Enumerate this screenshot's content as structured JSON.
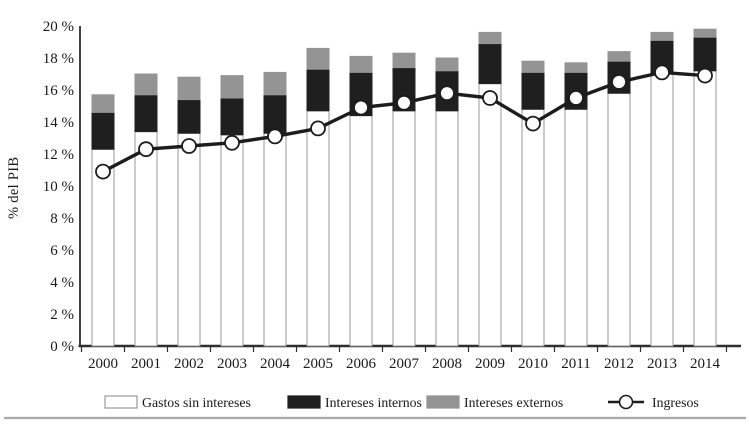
{
  "chart_data": {
    "type": "bar",
    "subtype": "stacked-bar-with-line-overlay",
    "title": "",
    "xlabel": "",
    "ylabel": "% del PIB",
    "categories": [
      "2000",
      "2001",
      "2002",
      "2003",
      "2004",
      "2005",
      "2006",
      "2007",
      "2008",
      "2009",
      "2010",
      "2011",
      "2012",
      "2013",
      "2014"
    ],
    "series": [
      {
        "name": "Gastos sin intereses",
        "type": "bar",
        "color": "#ffffff",
        "border": "#9a9a9a",
        "values": [
          12.3,
          13.4,
          13.3,
          13.2,
          13.3,
          14.7,
          14.4,
          14.7,
          14.7,
          16.4,
          14.8,
          14.8,
          15.8,
          17.0,
          17.2
        ]
      },
      {
        "name": "Intereses internos",
        "type": "bar",
        "color": "#1f1f1f",
        "border": "#1f1f1f",
        "values": [
          2.3,
          2.3,
          2.1,
          2.3,
          2.4,
          2.6,
          2.7,
          2.7,
          2.5,
          2.5,
          2.3,
          2.3,
          2.0,
          2.1,
          2.1
        ]
      },
      {
        "name": "Intereses externos",
        "type": "bar",
        "color": "#949494",
        "border": "#949494",
        "values": [
          1.1,
          1.3,
          1.4,
          1.4,
          1.4,
          1.3,
          1.0,
          0.9,
          0.8,
          0.7,
          0.7,
          0.6,
          0.6,
          0.5,
          0.5
        ]
      },
      {
        "name": "Ingresos",
        "type": "line",
        "color": "#1c1c1c",
        "marker": "open-circle",
        "marker_fill": "#ffffff",
        "values": [
          10.9,
          12.3,
          12.5,
          12.7,
          13.1,
          13.6,
          14.9,
          15.2,
          15.8,
          15.5,
          13.9,
          15.5,
          16.5,
          17.1,
          16.9
        ]
      }
    ],
    "stacked": true,
    "ylim": [
      0,
      20
    ],
    "ytick_step": 2,
    "ytick_labels": [
      "0 %",
      "2 %",
      "4 %",
      "6 %",
      "8 %",
      "10 %",
      "12 %",
      "14 %",
      "16 %",
      "18 %",
      "20 %"
    ],
    "grid": false,
    "legend_position": "bottom",
    "axis_color": "#2e2e2e",
    "footer_rule_color": "#aaaaaa"
  }
}
